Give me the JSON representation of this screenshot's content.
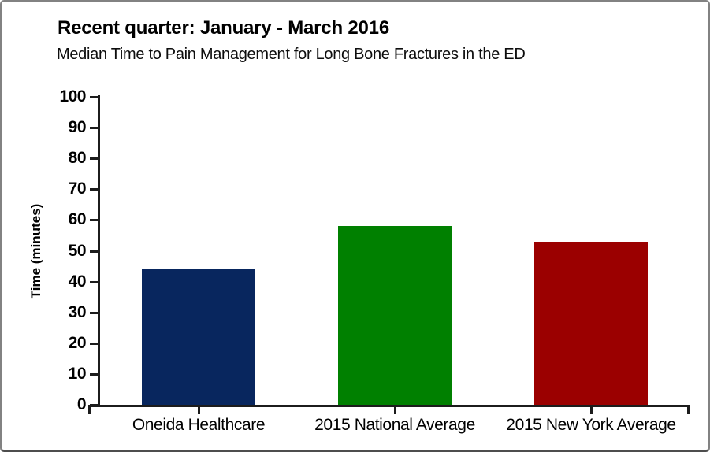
{
  "chart_data": {
    "type": "bar",
    "title": "Recent quarter: January - March 2016",
    "subtitle": "Median Time to Pain Management for Long Bone Fractures in the ED",
    "ylabel": "Time (minutes)",
    "xlabel": "",
    "categories": [
      "Oneida Healthcare",
      "2015 National Average",
      "2015 New York Average"
    ],
    "values": [
      44,
      58,
      53
    ],
    "bar_colors": [
      "#08265e",
      "#008000",
      "#9b0000"
    ],
    "ylim": [
      0,
      100
    ],
    "yticks": [
      0,
      10,
      20,
      30,
      40,
      50,
      60,
      70,
      80,
      90,
      100
    ],
    "grid": false,
    "legend_position": "none",
    "axis_color": "#1c1c1c",
    "text_color": "#000000",
    "background_color": "#ffffff",
    "frame_border_color": "#828282"
  }
}
